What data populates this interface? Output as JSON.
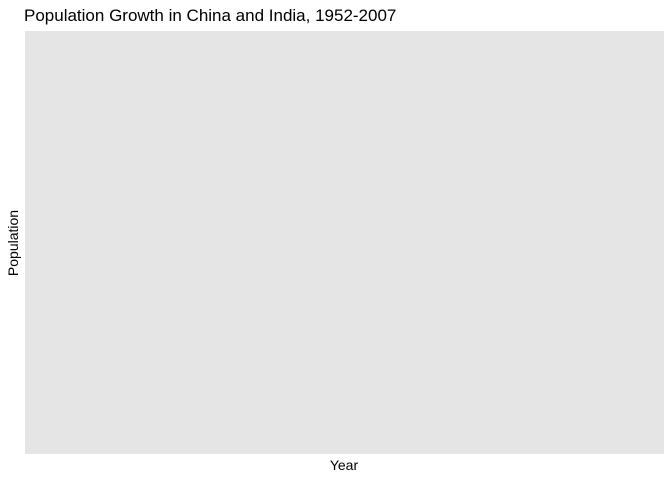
{
  "chart_data": {
    "type": "line",
    "title": "Population Growth in China and India, 1952-2007",
    "xlabel": "Year",
    "ylabel": "Population",
    "grid": false,
    "x": [],
    "series": []
  },
  "colors": {
    "panel_background": "#e5e5e5",
    "page_background": "#ffffff",
    "text": "#000000"
  }
}
